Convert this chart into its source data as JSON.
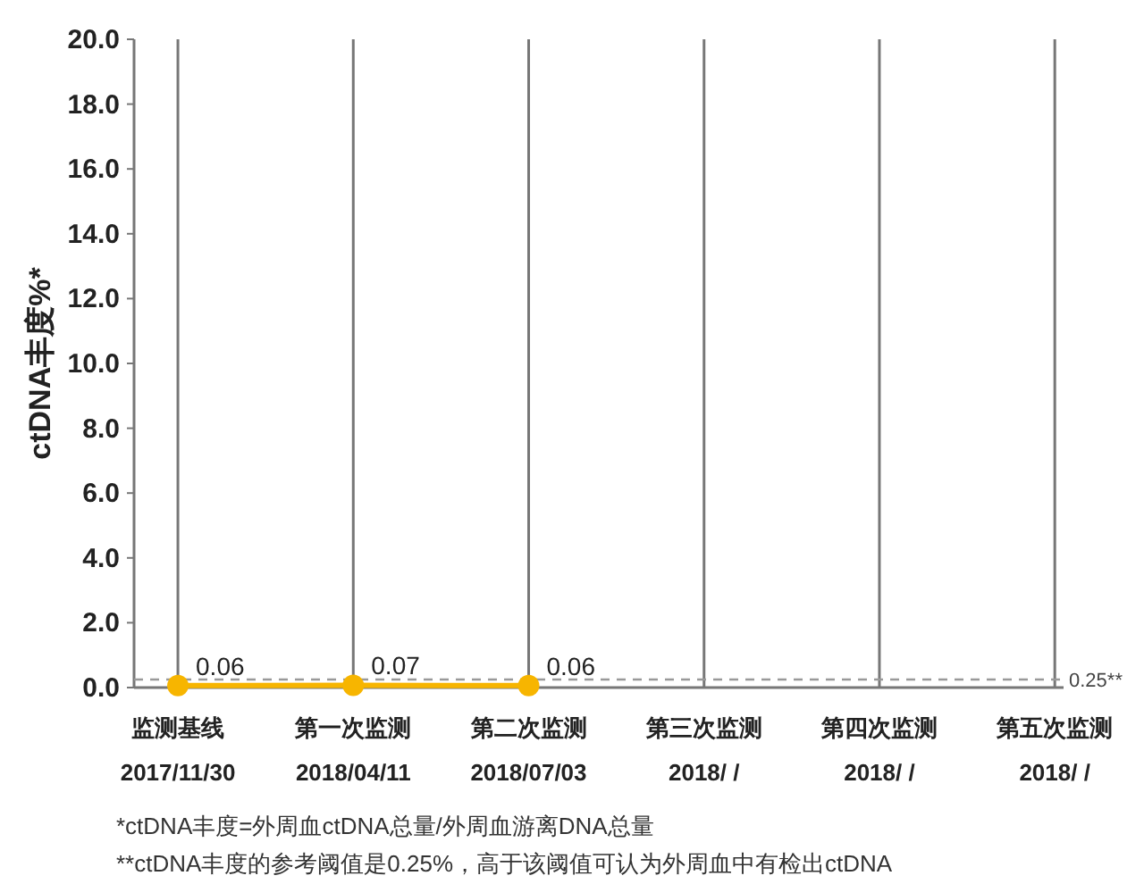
{
  "chart_data": {
    "type": "line",
    "categories": [
      "监测基线\n2017/11/30",
      "第一次监测\n2018/04/11",
      "第二次监测\n2018/07/03",
      "第三次监测\n2018/ /",
      "第四次监测\n2018/ /",
      "第五次监测\n2018/ /"
    ],
    "series": [
      {
        "color": "#f7b500",
        "values": [
          0.06,
          0.07,
          0.06,
          null,
          null,
          null
        ]
      }
    ],
    "ylabel": "ctDNA丰度%*",
    "ylim": [
      0,
      20
    ],
    "yticks": [
      {
        "value": 0,
        "label": "0.0"
      },
      {
        "value": 2,
        "label": "2.0"
      },
      {
        "value": 4,
        "label": "4.0"
      },
      {
        "value": 6,
        "label": "6.0"
      },
      {
        "value": 8,
        "label": "8.0"
      },
      {
        "value": 10,
        "label": "10.0"
      },
      {
        "value": 12,
        "label": "12.0"
      },
      {
        "value": 14,
        "label": "14.0"
      },
      {
        "value": 16,
        "label": "16.0"
      },
      {
        "value": 18,
        "label": "18.0"
      },
      {
        "value": 20,
        "label": "20.0"
      }
    ],
    "grid": "x",
    "marker": "circle",
    "line_style": "solid",
    "data_labels": true,
    "ref_lines": [
      {
        "axis": "y",
        "value": 0.25,
        "label": "0.25**",
        "color": "#999999",
        "line_style": "dashed"
      }
    ],
    "annotations": [
      "*ctDNA丰度=外周血ctDNA总量/外周血游离DNA总量",
      "**ctDNA丰度的参考阈值是0.25%，高于该阈值可认为外周血中有检出ctDNA"
    ]
  }
}
